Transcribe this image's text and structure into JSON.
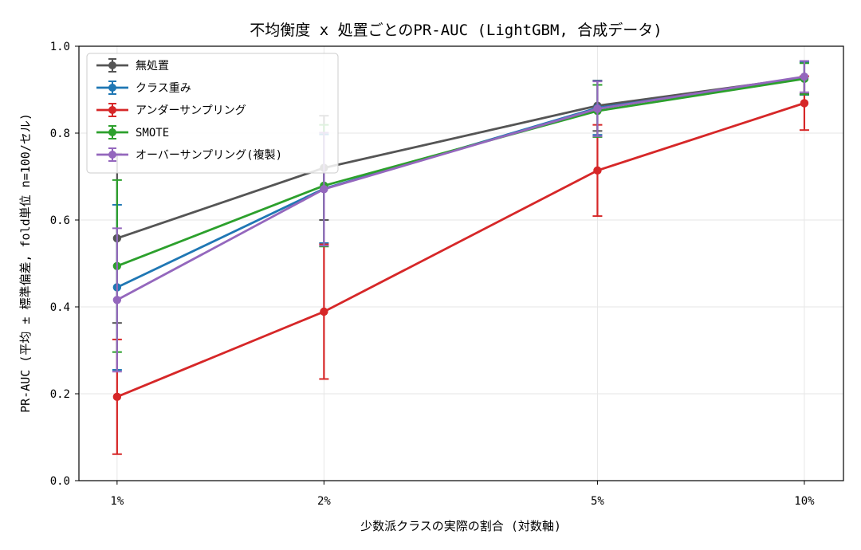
{
  "chart_data": {
    "type": "line",
    "title": "不均衡度 x 処置ごとのPR-AUC (LightGBM, 合成データ)",
    "xlabel": "少数派クラスの実際の割合 (対数軸)",
    "ylabel": "PR-AUC (平均 ± 標準偏差, fold単位 n=100/セル)",
    "x_scale": "log",
    "x": [
      0.01,
      0.02,
      0.05,
      0.1
    ],
    "x_tick_labels": [
      "1%",
      "2%",
      "5%",
      "10%"
    ],
    "xlim": [
      0.0088,
      0.114
    ],
    "ylim": [
      0.0,
      1.0
    ],
    "y_ticks": [
      0.0,
      0.2,
      0.4,
      0.6,
      0.8,
      1.0
    ],
    "y_tick_labels": [
      "0.0",
      "0.2",
      "0.4",
      "0.6",
      "0.8",
      "1.0"
    ],
    "grid": true,
    "legend_position": "top-left",
    "error_bars": "std",
    "series": [
      {
        "name": "無処置",
        "color": "#555555",
        "values": [
          0.558,
          0.72,
          0.863,
          0.928
        ],
        "err": [
          0.195,
          0.12,
          0.058,
          0.038
        ]
      },
      {
        "name": "クラス重み",
        "color": "#1f77b4",
        "values": [
          0.445,
          0.672,
          0.858,
          0.926
        ],
        "err": [
          0.19,
          0.125,
          0.062,
          0.038
        ]
      },
      {
        "name": "アンダーサンプリング",
        "color": "#d62728",
        "values": [
          0.193,
          0.389,
          0.714,
          0.869
        ],
        "err": [
          0.132,
          0.155,
          0.105,
          0.062
        ]
      },
      {
        "name": "SMOTE",
        "color": "#2ca02c",
        "values": [
          0.494,
          0.679,
          0.851,
          0.925
        ],
        "err": [
          0.198,
          0.14,
          0.06,
          0.036
        ]
      },
      {
        "name": "オーバーサンプリング(複製)",
        "color": "#9467bd",
        "values": [
          0.416,
          0.671,
          0.856,
          0.93
        ],
        "err": [
          0.165,
          0.13,
          0.063,
          0.036
        ]
      }
    ]
  }
}
